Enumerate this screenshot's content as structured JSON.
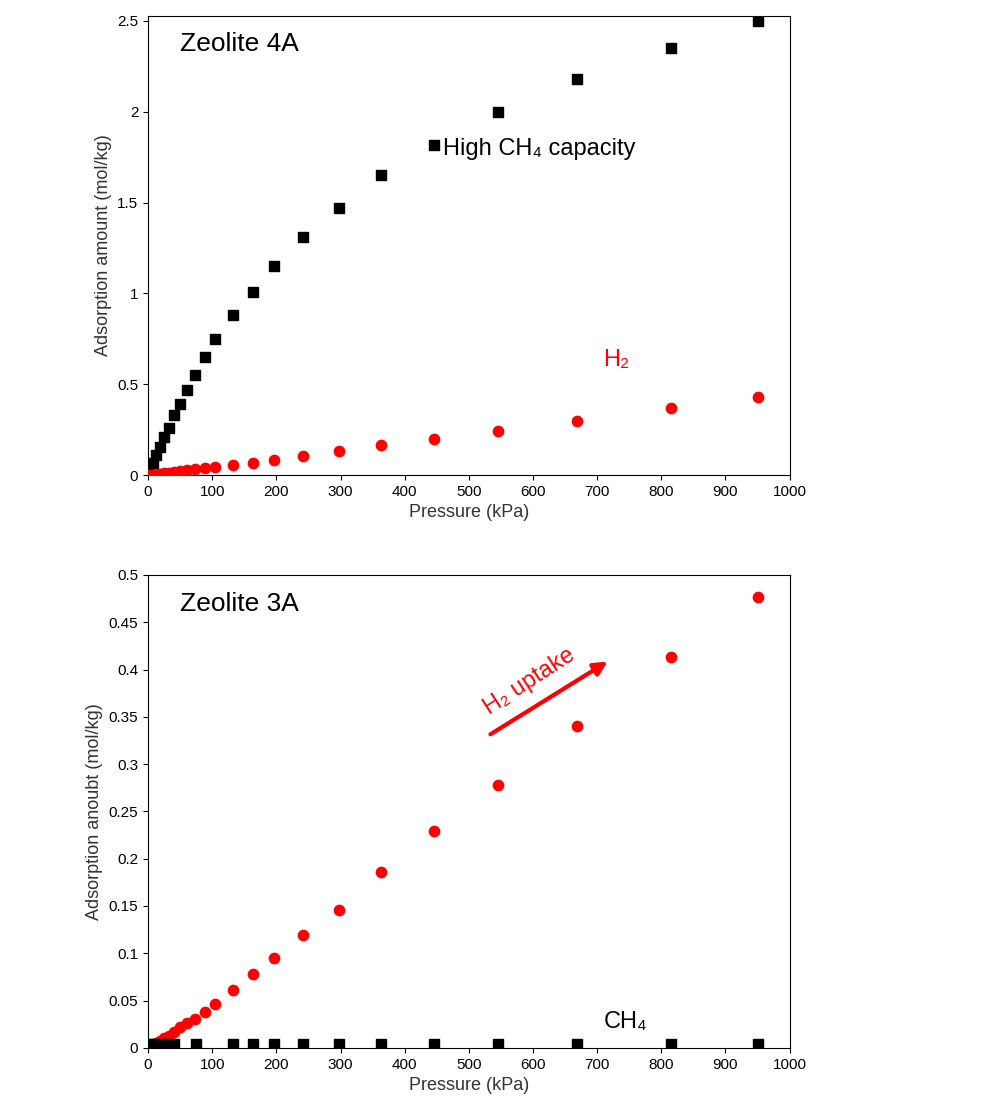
{
  "chart_data": [
    {
      "type": "scatter",
      "title": "Zeolite 4A",
      "x_label": "Pressure (kPa)",
      "y_label": "Adsorption amount (mol/kg)",
      "xlim": [
        0,
        1000
      ],
      "xticks": [
        0,
        100,
        200,
        300,
        400,
        500,
        600,
        700,
        800,
        900,
        1000
      ],
      "ylim": [
        0,
        2.53
      ],
      "yticks": [
        0,
        0.5,
        1,
        1.5,
        2,
        2.5
      ],
      "annotations": [
        "High CH₄ capacity",
        "H₂"
      ],
      "series": [
        {
          "color": "#000000",
          "marker": "square",
          "x": [
            3,
            7,
            12,
            18,
            25,
            32,
            40,
            50,
            60,
            73,
            88,
            105,
            133,
            163,
            197,
            242,
            297,
            363,
            445,
            545,
            668,
            815,
            951
          ],
          "values": [
            0.03,
            0.066,
            0.11,
            0.155,
            0.21,
            0.26,
            0.33,
            0.39,
            0.47,
            0.55,
            0.65,
            0.75,
            0.88,
            1.01,
            1.15,
            1.31,
            1.47,
            1.65,
            1.82,
            2.0,
            2.18,
            2.35,
            2.5
          ]
        },
        {
          "color": "#ff0000",
          "marker": "circle",
          "x": [
            3,
            7,
            12,
            18,
            25,
            32,
            40,
            50,
            60,
            73,
            88,
            105,
            133,
            163,
            197,
            242,
            297,
            363,
            445,
            545,
            668,
            815,
            951
          ],
          "values": [
            0.001,
            0.003,
            0.005,
            0.007,
            0.01,
            0.013,
            0.016,
            0.02,
            0.026,
            0.032,
            0.038,
            0.045,
            0.055,
            0.068,
            0.085,
            0.105,
            0.13,
            0.165,
            0.2,
            0.24,
            0.3,
            0.37,
            0.43
          ]
        }
      ]
    },
    {
      "type": "scatter",
      "title": "Zeolite 3A",
      "x_label": "Pressure (kPa)",
      "y_label": "Adsorption anoubt (mol/kg)",
      "xlim": [
        0,
        1000
      ],
      "xticks": [
        0,
        100,
        200,
        300,
        400,
        500,
        600,
        700,
        800,
        900,
        1000
      ],
      "ylim": [
        0,
        0.5
      ],
      "yticks": [
        0,
        0.05,
        0.1,
        0.15,
        0.2,
        0.25,
        0.3,
        0.35,
        0.4,
        0.45,
        0.5
      ],
      "annotations": [
        "H₂ uptake",
        "CH₄"
      ],
      "series": [
        {
          "color": "#ff0000",
          "marker": "circle",
          "x": [
            3,
            7,
            12,
            18,
            25,
            32,
            40,
            50,
            60,
            73,
            88,
            105,
            133,
            163,
            197,
            242,
            297,
            363,
            445,
            545,
            668,
            815,
            951
          ],
          "values": [
            0.001,
            0.003,
            0.005,
            0.007,
            0.01,
            0.013,
            0.017,
            0.022,
            0.026,
            0.03,
            0.038,
            0.046,
            0.061,
            0.078,
            0.095,
            0.119,
            0.146,
            0.186,
            0.229,
            0.278,
            0.34,
            0.413,
            0.477
          ]
        },
        {
          "color": "#000000",
          "marker": "square",
          "x": [
            3,
            10,
            20,
            30,
            40,
            75,
            133,
            163,
            197,
            242,
            297,
            363,
            445,
            545,
            668,
            815,
            951
          ],
          "values": [
            0.004,
            0.004,
            0.004,
            0.004,
            0.004,
            0.004,
            0.004,
            0.004,
            0.004,
            0.004,
            0.004,
            0.004,
            0.004,
            0.004,
            0.004,
            0.004,
            0.004
          ]
        }
      ]
    }
  ]
}
